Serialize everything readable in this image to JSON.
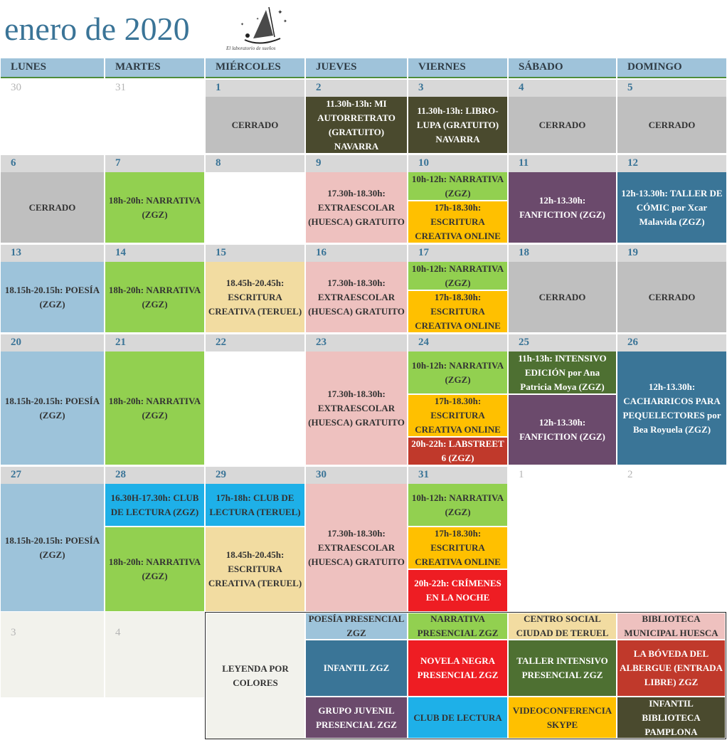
{
  "title": "enero de 2020",
  "logo_text": "El laboratorio de sueños",
  "weekdays": [
    "LUNES",
    "MARTES",
    "MIÉRCOLES",
    "JUEVES",
    "VIERNES",
    "SÁBADO",
    "DOMINGO"
  ],
  "days": {
    "w1": [
      "30",
      "31",
      "1",
      "2",
      "3",
      "4",
      "5"
    ],
    "w2": [
      "6",
      "7",
      "8",
      "9",
      "10",
      "11",
      "12"
    ],
    "w3": [
      "13",
      "14",
      "15",
      "16",
      "17",
      "18",
      "19"
    ],
    "w4": [
      "20",
      "21",
      "22",
      "23",
      "24",
      "25",
      "26"
    ],
    "w5": [
      "27",
      "28",
      "29",
      "30",
      "31",
      "1",
      "2"
    ],
    "w6": [
      "3",
      "4"
    ]
  },
  "events": {
    "cerrado": "CERRADO",
    "mi_autorretrato": "11.30h-13h: MI AUTORRETRATO (GRATUITO) NAVARRA",
    "libro_lupa": "11.30h-13h: LIBRO-LUPA (GRATUITO) NAVARRA",
    "narrativa_18_20": "18h-20h: NARRATIVA (ZGZ)",
    "extraescolar": "17.30h-18.30h: EXTRAESCOLAR (HUESCA) GRATUITO",
    "narrativa_10_12": "10h-12h: NARRATIVA (ZGZ)",
    "escritura_online": "17h-18.30h: ESCRITURA CREATIVA ONLINE",
    "fanfiction": "12h-13.30h: FANFICTION (ZGZ)",
    "taller_comic": "12h-13.30h: TALLER DE CÓMIC por Xcar Malavida (ZGZ)",
    "poesia": "18.15h-20.15h: POESÍA (ZGZ)",
    "escritura_teruel": "18.45h-20.45h: ESCRITURA CREATIVA (TERUEL)",
    "intensivo_edicion": "11h-13h: INTENSIVO EDICIÓN por Ana Patricia Moya (ZGZ)",
    "cacharricos": "12h-13.30h: CACHARRICOS PARA PEQUELECTORES por Bea Royuela (ZGZ)",
    "labstreet": "20h-22h: LABSTREET 6 (ZGZ)",
    "club_lectura_zgz": "16.30H-17.30h: CLUB DE LECTURA (ZGZ)",
    "club_lectura_teruel": "17h-18h: CLUB DE LECTURA (TERUEL)",
    "crimenes": "20h-22h: CRÍMENES EN LA NOCHE"
  },
  "legend": {
    "title": "LEYENDA POR COLORES",
    "poesia": "POESÍA PRESENCIAL ZGZ",
    "narrativa": "NARRATIVA PRESENCIAL ZGZ",
    "centro_social": "CENTRO SOCIAL CIUDAD DE TERUEL",
    "biblioteca_huesca": "BIBLIOTECA MUNICIPAL HUESCA",
    "infantil": "INFANTIL ZGZ",
    "novela_negra": "NOVELA NEGRA PRESENCIAL ZGZ",
    "taller_intensivo": "TALLER INTENSIVO PRESENCIAL ZGZ",
    "boveda": "LA BÓVEDA DEL ALBERGUE (ENTRADA LIBRE) ZGZ",
    "grupo_juvenil": "GRUPO JUVENIL PRESENCIAL ZGZ",
    "club_lectura": "CLUB DE LECTURA",
    "videoconferencia": "VIDEOCONFERENCIA SKYPE",
    "infantil_pamplona": "INFANTIL BIBLIOTECA PAMPLONA"
  },
  "colors": {
    "header": "#9fc3da",
    "daybar": "#d8d8d8",
    "title": "#3a7497",
    "gray": "#bfbfbf",
    "green": "#92d050",
    "pink": "#eec1bf",
    "orange": "#ffc000",
    "blue": "#9dc3da",
    "cream": "#f2dca1",
    "purple": "#6b4a6c",
    "teal": "#3a7597",
    "olive": "#4a4a2e",
    "cyan": "#1eb0e8",
    "red": "#ee1d23",
    "brick": "#c0392b",
    "dgreen": "#4e7032"
  }
}
